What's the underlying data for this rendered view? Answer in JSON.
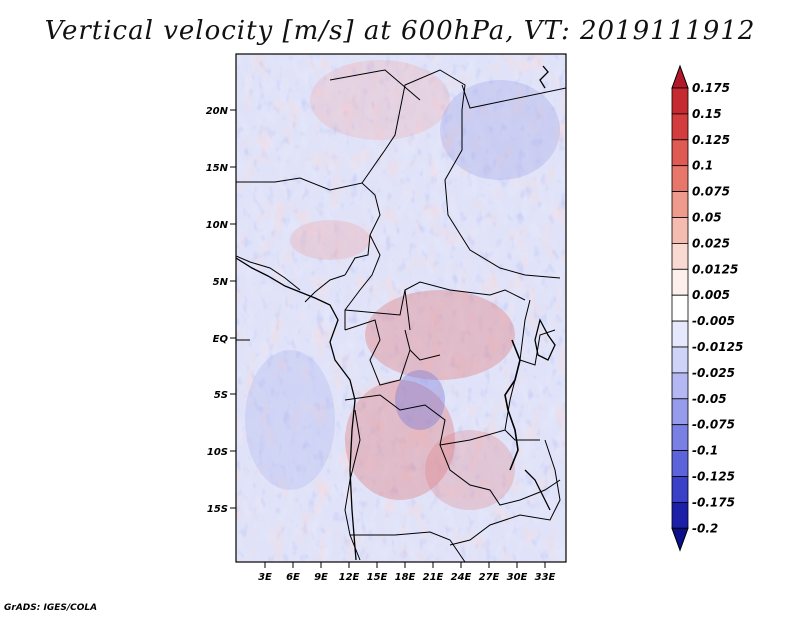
{
  "title": "Vertical velocity [m/s] at 600hPa, VT: 2019111912",
  "footer": "GrADS: IGES/COLA",
  "map": {
    "lat_labels": [
      "20N",
      "15N",
      "10N",
      "5N",
      "EQ",
      "5S",
      "10S",
      "15S"
    ],
    "lon_labels": [
      "3E",
      "6E",
      "9E",
      "12E",
      "15E",
      "18E",
      "21E",
      "24E",
      "27E",
      "30E",
      "33E"
    ]
  },
  "colorbar": {
    "labels": [
      "0.175",
      "0.15",
      "0.125",
      "0.1",
      "0.075",
      "0.05",
      "0.025",
      "0.0125",
      "0.005",
      "-0.005",
      "-0.0125",
      "-0.025",
      "-0.05",
      "-0.075",
      "-0.1",
      "-0.125",
      "-0.175",
      "-0.2"
    ],
    "colors": [
      "#b2182b",
      "#c62a31",
      "#d43d3d",
      "#de5a52",
      "#e6776a",
      "#ee9a8c",
      "#f4bbb0",
      "#f9dad2",
      "#fdf0ec",
      "#ffffff",
      "#e6e8fb",
      "#cfd3f7",
      "#b3b8f2",
      "#969ceb",
      "#7a80e3",
      "#5d63da",
      "#3b40c8",
      "#1c1fa8",
      "#0c0e8a"
    ]
  }
}
